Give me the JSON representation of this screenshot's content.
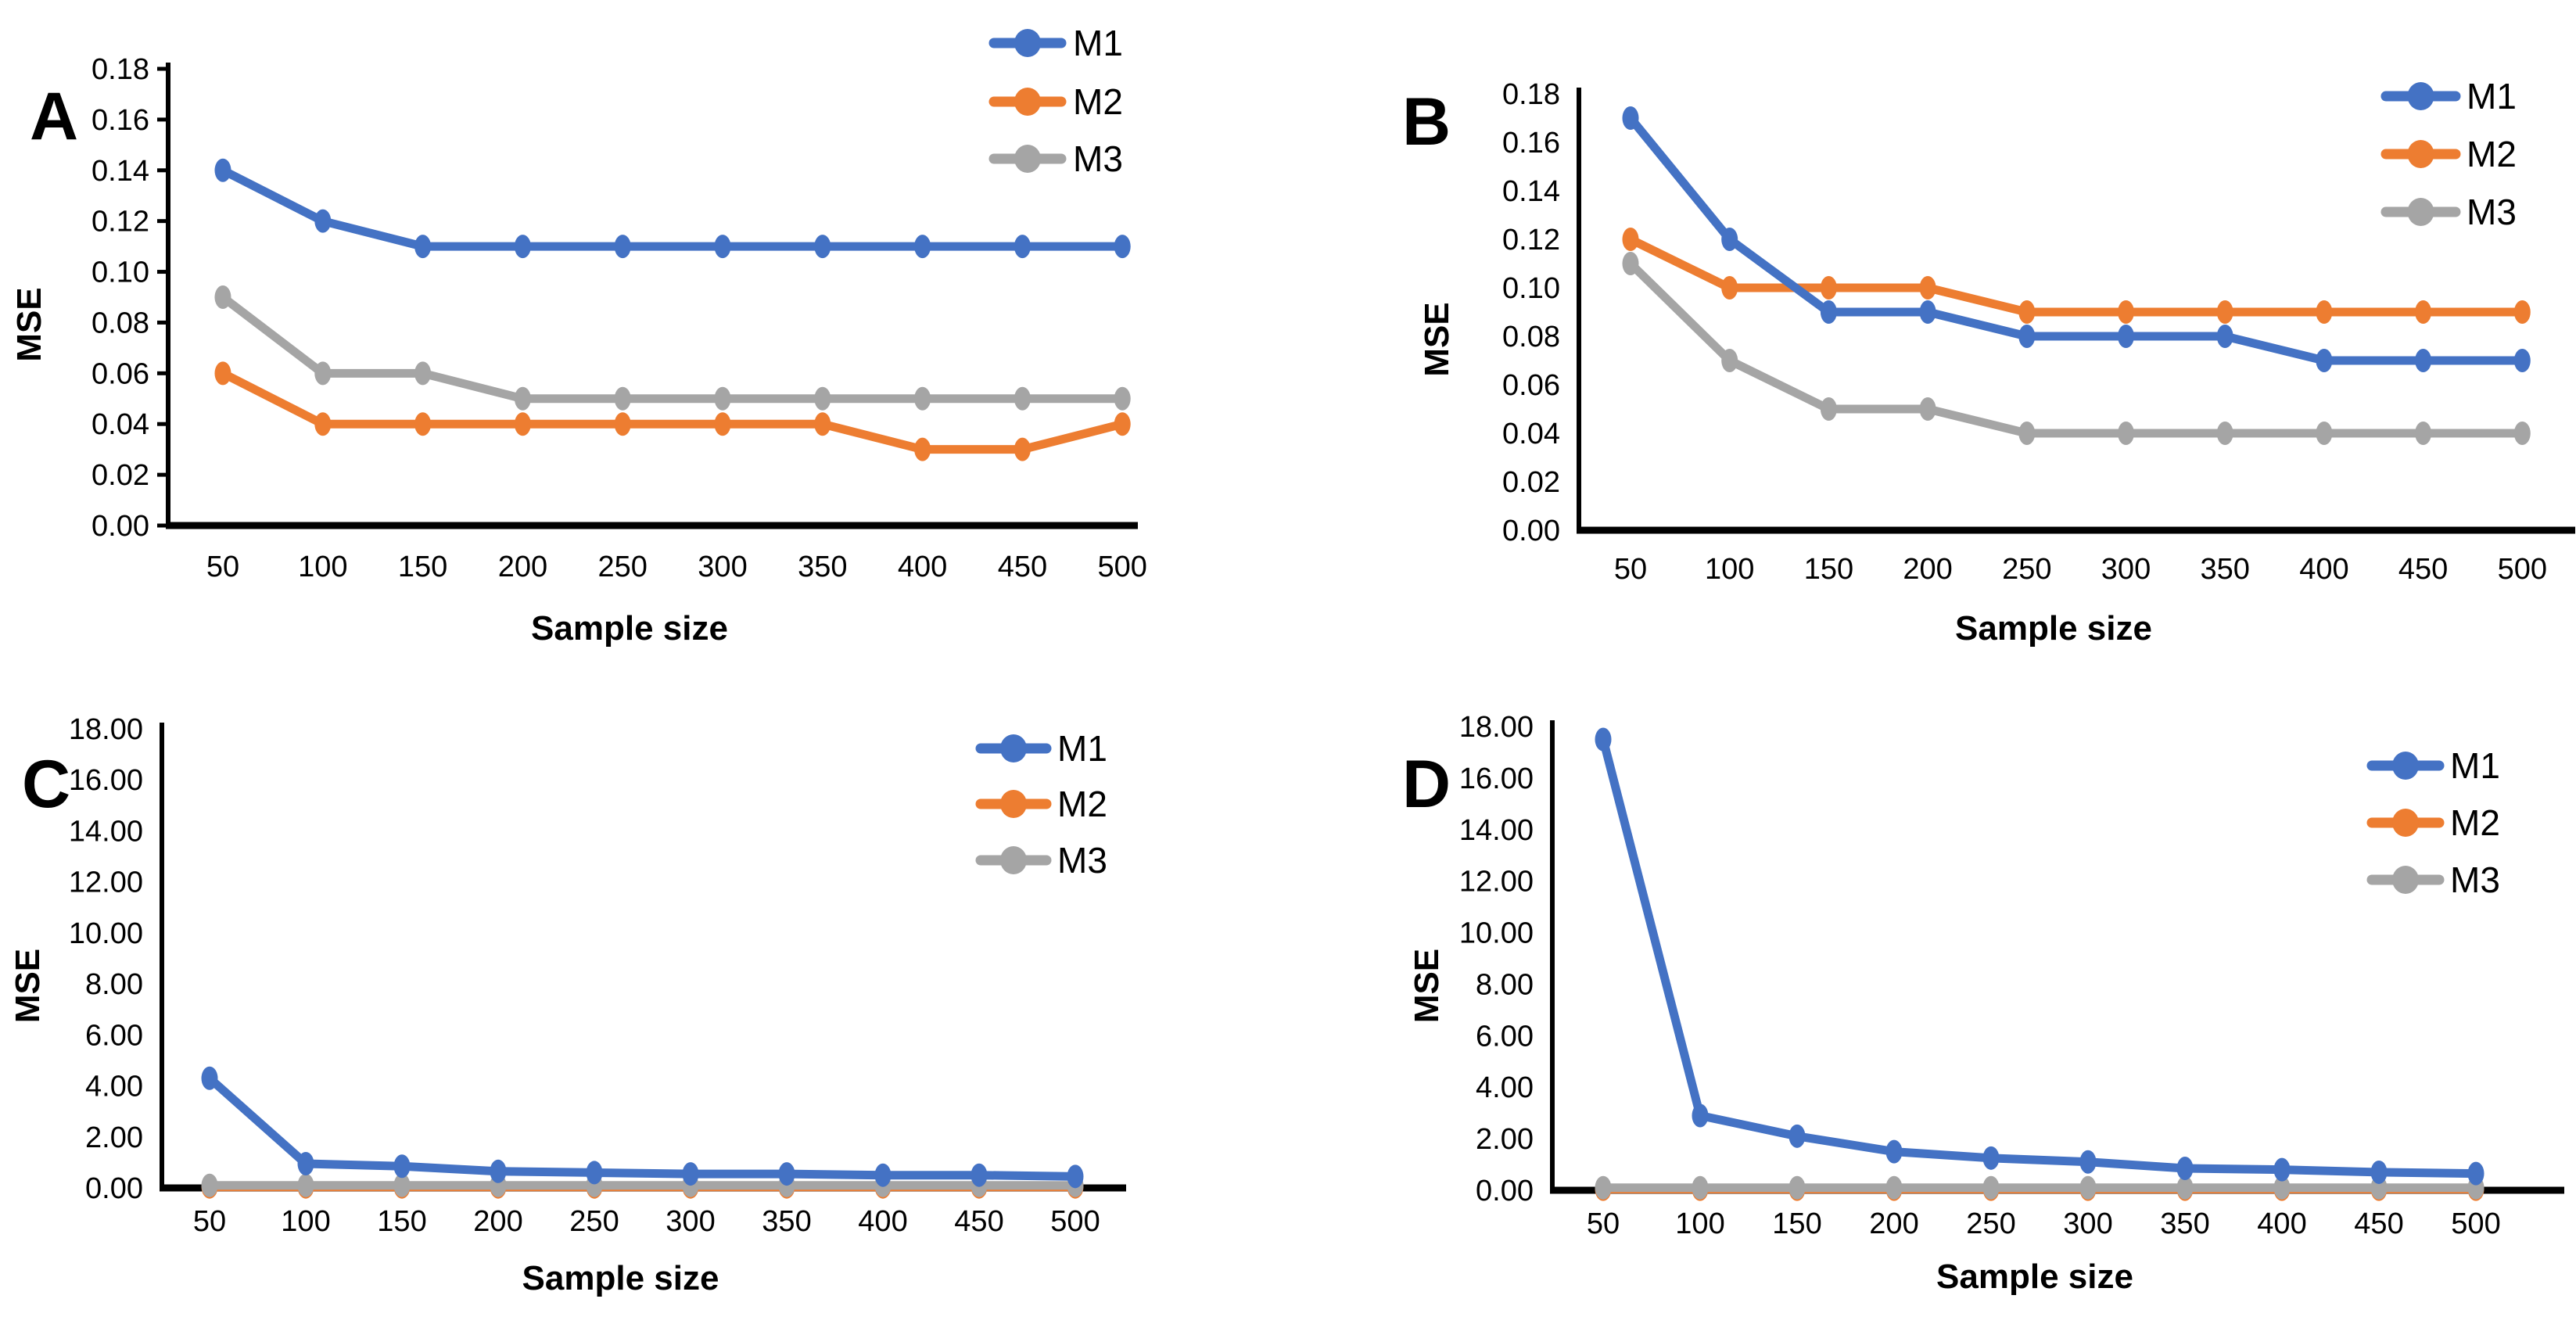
{
  "figure": {
    "background": "#FFFFFF",
    "axis_color": "#000000",
    "series_colors": {
      "M1": "#4472C4",
      "M2": "#ED7D31",
      "M3": "#A5A5A5"
    }
  },
  "chart_data": [
    {
      "panel": "A",
      "type": "line",
      "title": "",
      "xlabel": "Sample size",
      "ylabel": "MSE",
      "categories": [
        50,
        100,
        150,
        200,
        250,
        300,
        350,
        400,
        450,
        500
      ],
      "ylim": [
        0,
        0.18
      ],
      "ytick_step": 0.02,
      "grid": false,
      "legend_position": "top-right",
      "legend": [
        "M1",
        "M2",
        "M3"
      ],
      "series": [
        {
          "name": "M1",
          "color": "#4472C4",
          "values": [
            0.14,
            0.12,
            0.11,
            0.11,
            0.11,
            0.11,
            0.11,
            0.11,
            0.11,
            0.11
          ]
        },
        {
          "name": "M2",
          "color": "#ED7D31",
          "values": [
            0.06,
            0.04,
            0.04,
            0.04,
            0.04,
            0.04,
            0.04,
            0.03,
            0.03,
            0.04
          ]
        },
        {
          "name": "M3",
          "color": "#A5A5A5",
          "values": [
            0.09,
            0.06,
            0.06,
            0.05,
            0.05,
            0.05,
            0.05,
            0.05,
            0.05,
            0.05
          ]
        }
      ]
    },
    {
      "panel": "B",
      "type": "line",
      "title": "",
      "xlabel": "Sample size",
      "ylabel": "MSE",
      "categories": [
        50,
        100,
        150,
        200,
        250,
        300,
        350,
        400,
        450,
        500
      ],
      "ylim": [
        0,
        0.18
      ],
      "ytick_step": 0.02,
      "grid": false,
      "legend_position": "top-right",
      "legend": [
        "M1",
        "M2",
        "M3"
      ],
      "series": [
        {
          "name": "M1",
          "color": "#4472C4",
          "values": [
            0.17,
            0.12,
            0.09,
            0.09,
            0.08,
            0.08,
            0.08,
            0.07,
            0.07,
            0.07
          ]
        },
        {
          "name": "M2",
          "color": "#ED7D31",
          "values": [
            0.12,
            0.1,
            0.1,
            0.1,
            0.09,
            0.09,
            0.09,
            0.09,
            0.09,
            0.09
          ]
        },
        {
          "name": "M3",
          "color": "#A5A5A5",
          "values": [
            0.11,
            0.07,
            0.05,
            0.05,
            0.04,
            0.04,
            0.04,
            0.04,
            0.04,
            0.04
          ]
        }
      ]
    },
    {
      "panel": "C",
      "type": "line",
      "title": "",
      "xlabel": "Sample size",
      "ylabel": "MSE",
      "categories": [
        50,
        100,
        150,
        200,
        250,
        300,
        350,
        400,
        450,
        500
      ],
      "ylim": [
        0,
        18
      ],
      "ytick_step": 2,
      "grid": false,
      "legend_position": "top-right",
      "legend": [
        "M1",
        "M2",
        "M3"
      ],
      "series": [
        {
          "name": "M1",
          "color": "#4472C4",
          "values": [
            4.3,
            0.95,
            0.85,
            0.65,
            0.6,
            0.55,
            0.55,
            0.5,
            0.5,
            0.45
          ]
        },
        {
          "name": "M2",
          "color": "#ED7D31",
          "values": [
            0.04,
            0.04,
            0.04,
            0.04,
            0.04,
            0.04,
            0.04,
            0.04,
            0.04,
            0.04
          ]
        },
        {
          "name": "M3",
          "color": "#A5A5A5",
          "values": [
            0.1,
            0.1,
            0.1,
            0.1,
            0.1,
            0.1,
            0.1,
            0.1,
            0.1,
            0.1
          ]
        }
      ]
    },
    {
      "panel": "D",
      "type": "line",
      "title": "",
      "xlabel": "Sample size",
      "ylabel": "MSE",
      "categories": [
        50,
        100,
        150,
        200,
        250,
        300,
        350,
        400,
        450,
        500
      ],
      "ylim": [
        0,
        18
      ],
      "ytick_step": 2,
      "grid": false,
      "legend_position": "top-right",
      "legend": [
        "M1",
        "M2",
        "M3"
      ],
      "series": [
        {
          "name": "M1",
          "color": "#4472C4",
          "values": [
            17.5,
            2.9,
            2.1,
            1.5,
            1.25,
            1.1,
            0.85,
            0.8,
            0.7,
            0.65
          ]
        },
        {
          "name": "M2",
          "color": "#ED7D31",
          "values": [
            0.04,
            0.04,
            0.04,
            0.04,
            0.04,
            0.04,
            0.04,
            0.04,
            0.04,
            0.04
          ]
        },
        {
          "name": "M3",
          "color": "#A5A5A5",
          "values": [
            0.1,
            0.1,
            0.1,
            0.1,
            0.1,
            0.1,
            0.1,
            0.1,
            0.1,
            0.1
          ]
        }
      ]
    }
  ]
}
